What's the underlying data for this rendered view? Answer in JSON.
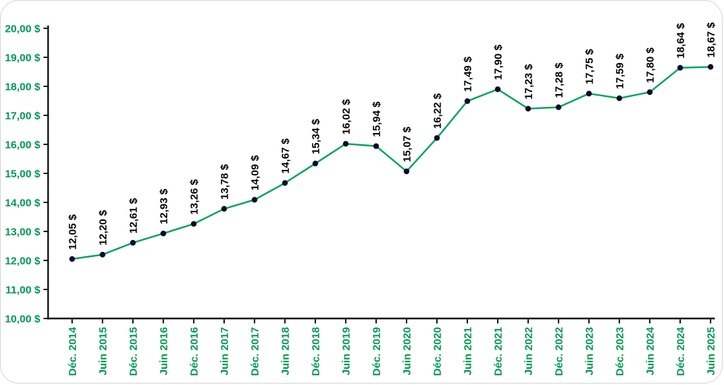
{
  "chart_data": {
    "type": "line",
    "categories": [
      "Déc. 2014",
      "Juin 2015",
      "Déc. 2015",
      "Juin 2016",
      "Déc. 2016",
      "Juin 2017",
      "Déc. 2017",
      "Juin 2018",
      "Déc. 2018",
      "Juin 2019",
      "Déc. 2019",
      "Juin 2020",
      "Déc. 2020",
      "Juin 2021",
      "Déc. 2021",
      "Juin 2022",
      "Déc. 2022",
      "Juin 2023",
      "Déc. 2023",
      "Juin 2024",
      "Déc. 2024",
      "Juin 2025"
    ],
    "values": [
      12.05,
      12.2,
      12.61,
      12.93,
      13.26,
      13.78,
      14.09,
      14.67,
      15.34,
      16.02,
      15.94,
      15.07,
      16.22,
      17.49,
      17.9,
      17.23,
      17.28,
      17.75,
      17.59,
      17.8,
      18.64,
      18.67
    ],
    "point_labels": [
      "12,05 $",
      "12,20 $",
      "12,61 $",
      "12,93 $",
      "13,26 $",
      "13,78 $",
      "14,09 $",
      "14,67 $",
      "15,34 $",
      "16,02 $",
      "15,94 $",
      "15,07 $",
      "16,22 $",
      "17,49 $",
      "17,90 $",
      "17,23 $",
      "17,28 $",
      "17,75 $",
      "17,59 $",
      "17,80 $",
      "18,64 $",
      "18,67 $"
    ],
    "y_tick_values": [
      10,
      11,
      12,
      13,
      14,
      15,
      16,
      17,
      18,
      19,
      20
    ],
    "y_tick_labels": [
      "10,00 $",
      "11,00 $",
      "12,00 $",
      "13,00 $",
      "14,00 $",
      "15,00 $",
      "16,00 $",
      "17,00 $",
      "18,00 $",
      "19,00 $",
      "20,00 $"
    ],
    "ylim": [
      10,
      20
    ],
    "title": "",
    "xlabel": "",
    "ylabel": "",
    "grid": false,
    "legend": "none",
    "colors": {
      "line": "#04a45c",
      "marker": "#0a0a28",
      "axis": "#1a1a1a",
      "tick_label_text": "#009751",
      "point_label_text": "#000000",
      "card_border": "#d6d6d6",
      "background": "#ffffff"
    }
  }
}
